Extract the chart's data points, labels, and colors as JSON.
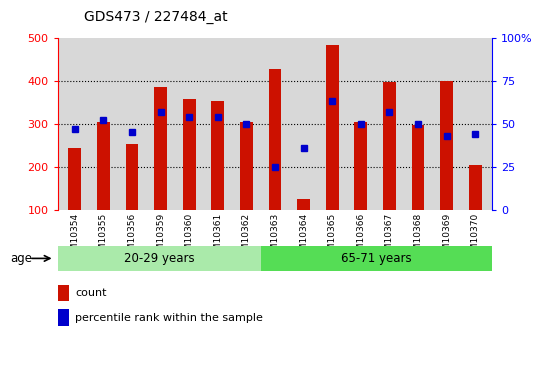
{
  "title": "GDS473 / 227484_at",
  "samples": [
    "GSM10354",
    "GSM10355",
    "GSM10356",
    "GSM10359",
    "GSM10360",
    "GSM10361",
    "GSM10362",
    "GSM10363",
    "GSM10364",
    "GSM10365",
    "GSM10366",
    "GSM10367",
    "GSM10368",
    "GSM10369",
    "GSM10370"
  ],
  "counts": [
    243,
    305,
    254,
    385,
    358,
    354,
    305,
    428,
    126,
    483,
    304,
    397,
    298,
    399,
    205
  ],
  "percentile_ranks": [
    47,
    52,
    45,
    57,
    54,
    54,
    50,
    25,
    36,
    63,
    50,
    57,
    50,
    43,
    44
  ],
  "group1_label": "20-29 years",
  "group2_label": "65-71 years",
  "group1_count": 7,
  "group2_count": 8,
  "ylim_left": [
    100,
    500
  ],
  "ylim_right": [
    0,
    100
  ],
  "bar_color": "#cc1100",
  "dot_color": "#0000cc",
  "group1_bg": "#aaeaaa",
  "group2_bg": "#55dd55",
  "plot_bg": "#d8d8d8",
  "legend_label_count": "count",
  "legend_label_pct": "percentile rank within the sample",
  "age_label": "age",
  "yticklabels_left": [
    100,
    200,
    300,
    400,
    500
  ],
  "yticklabels_right": [
    0,
    25,
    50,
    75,
    100
  ]
}
